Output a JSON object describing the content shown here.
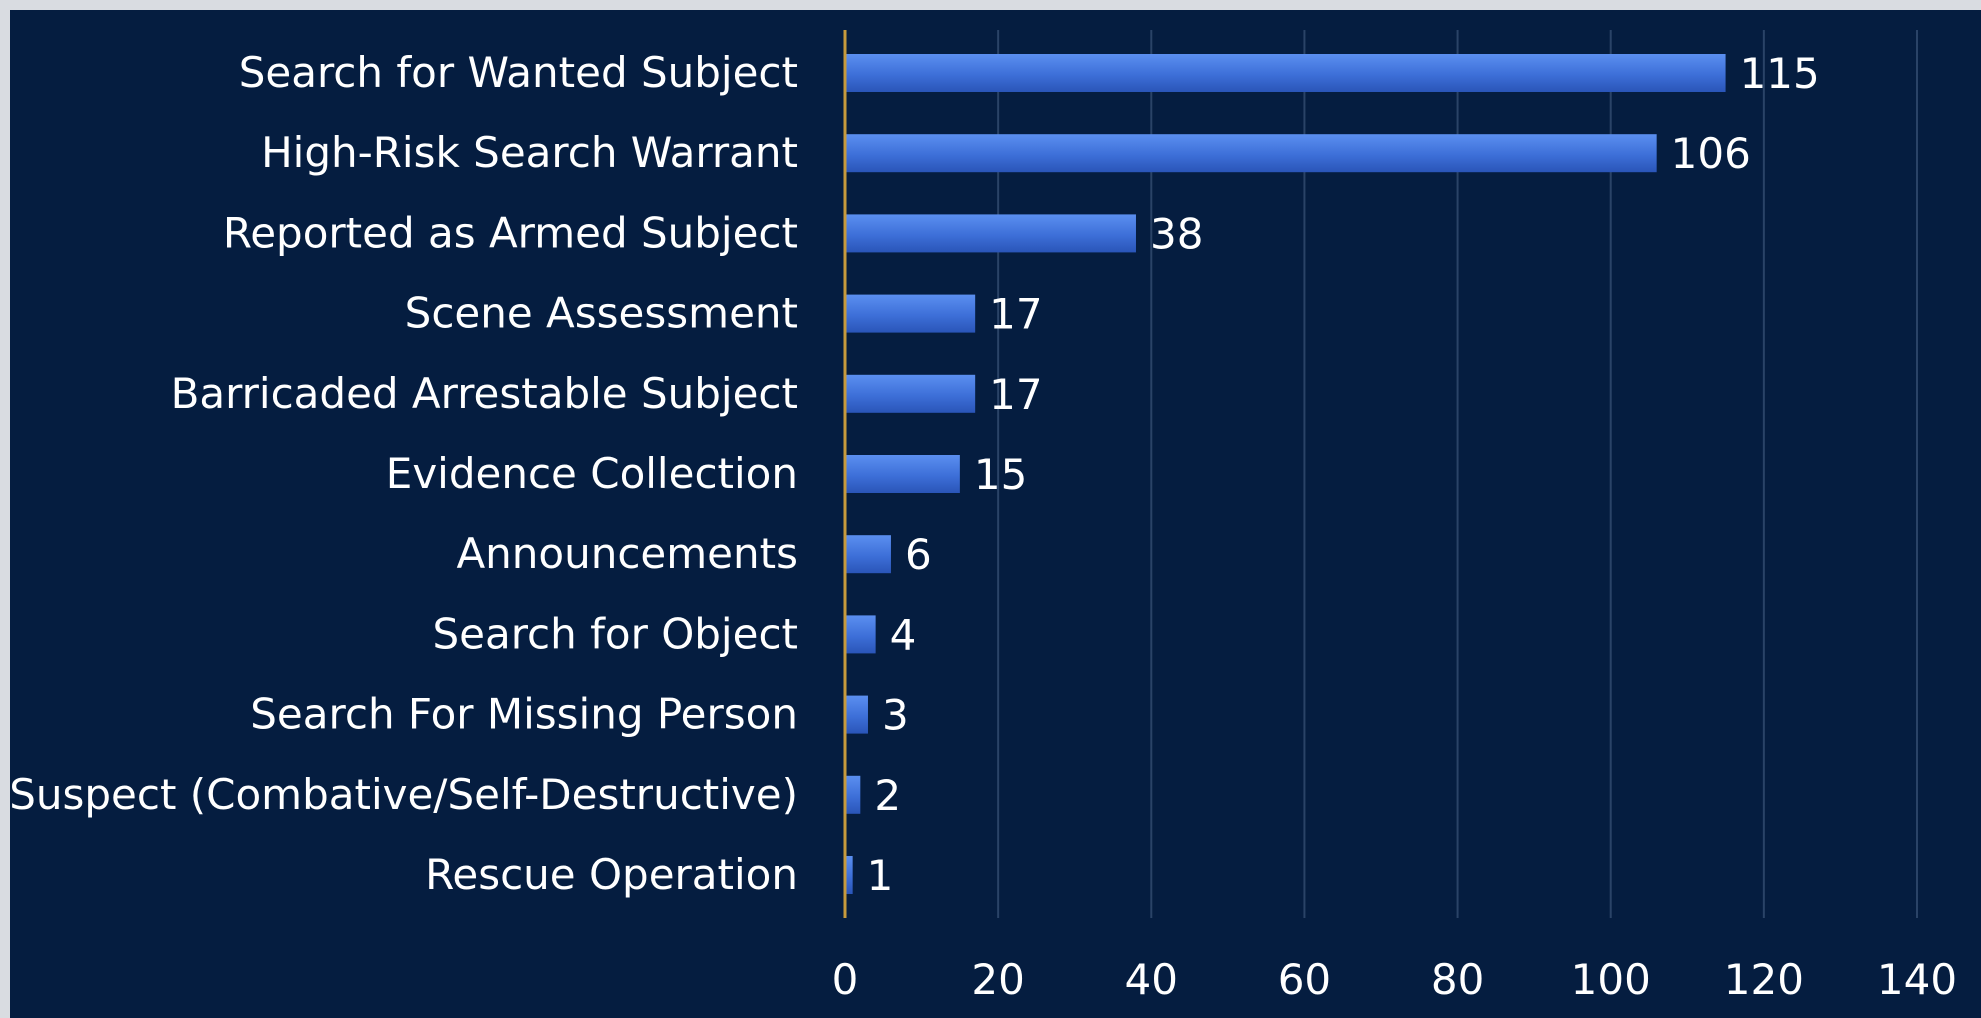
{
  "chart_data": {
    "type": "bar",
    "orientation": "horizontal",
    "categories": [
      "Search for Wanted Subject",
      "High-Risk Search Warrant",
      "Reported as Armed Subject",
      "Scene Assessment",
      "Barricaded Arrestable Subject",
      "Evidence Collection",
      "Announcements",
      "Search for Object",
      "Search For Missing Person",
      "Suspect (Combative/Self-Destructive)",
      "Rescue Operation"
    ],
    "values": [
      115,
      106,
      38,
      17,
      17,
      15,
      6,
      4,
      3,
      2,
      1
    ],
    "x_ticks": [
      "0",
      "20",
      "40",
      "60",
      "80",
      "100",
      "120",
      "140"
    ],
    "xlim": [
      0,
      140
    ],
    "grid": true,
    "colors": {
      "background": "#051d40",
      "bar": "#3d6fd8",
      "gridline": "#2a4367",
      "axis": "#c79a3c",
      "text": "#ffffff"
    }
  }
}
